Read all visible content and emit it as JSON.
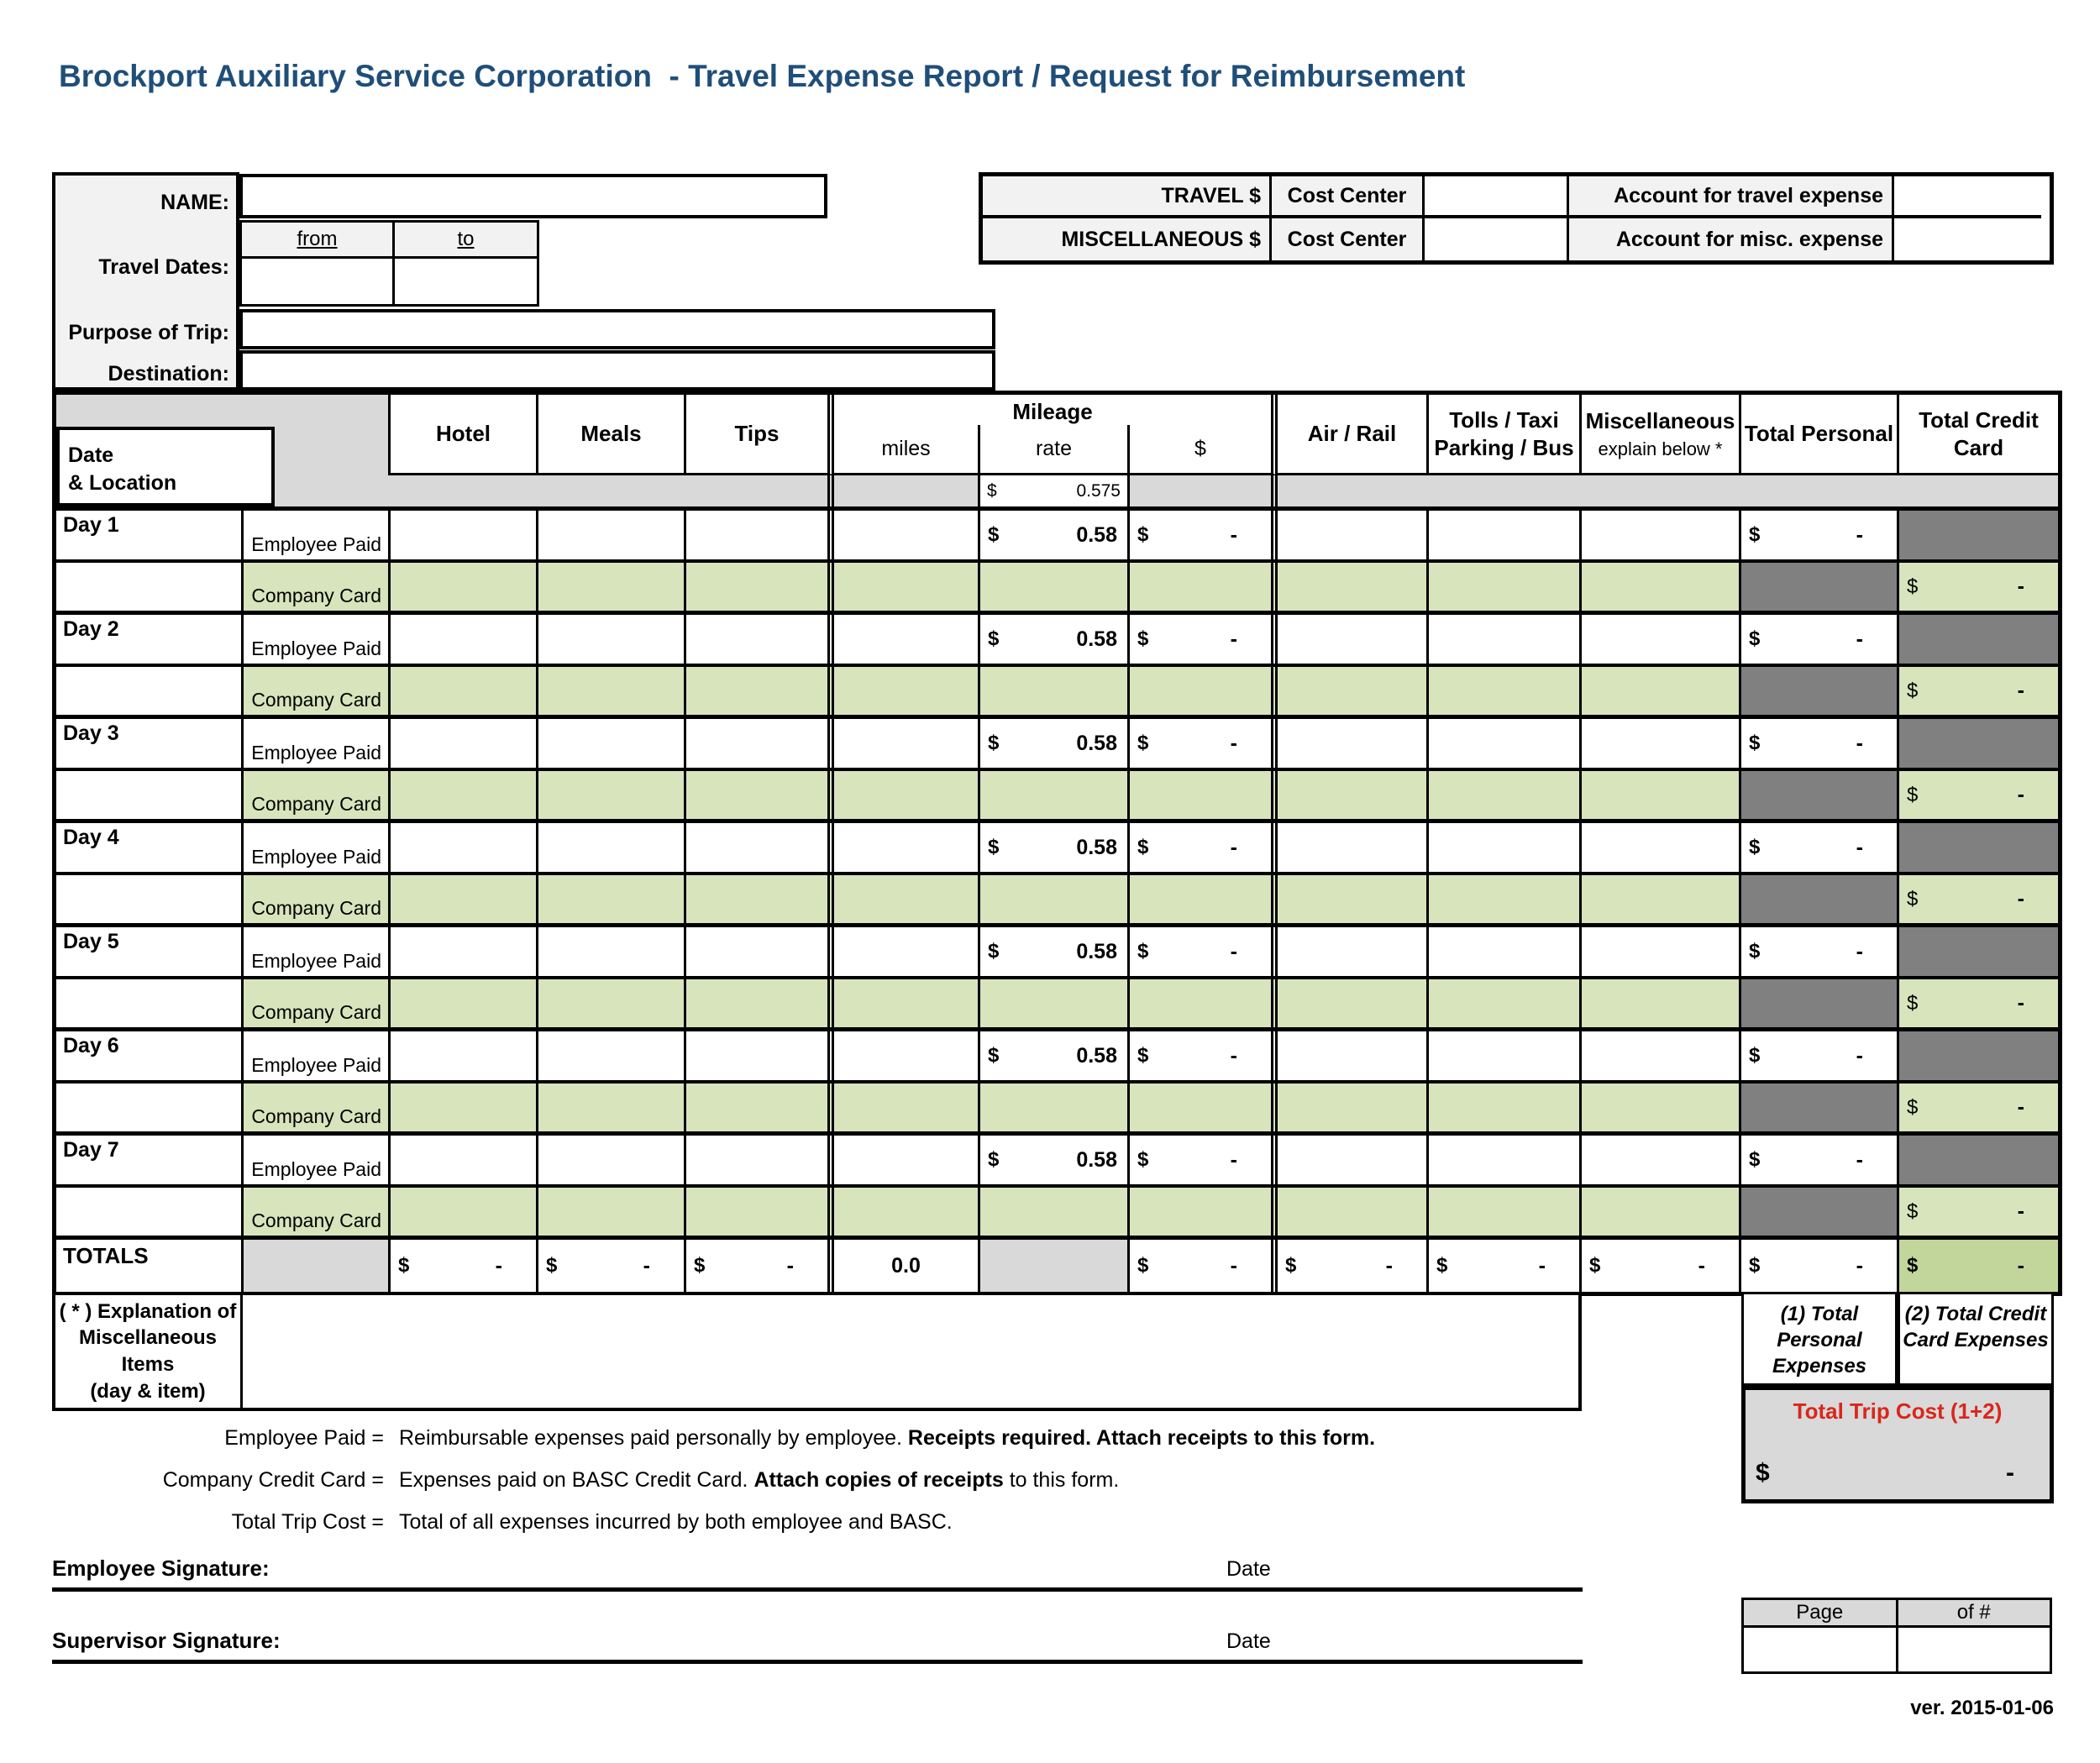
{
  "title": "Brockport Auxiliary Service Corporation  - Travel Expense Report / Request for Reimbursement",
  "currency": "$",
  "colors": {
    "title_blue": "#1F4E79",
    "row_green": "#D8E4BC",
    "totals_green": "#C2D69B",
    "dark_gray": "#808080",
    "strip_gray": "#D9D9D9",
    "label_gray": "#F2F2F2",
    "trip_red": "#D9261C"
  },
  "info": {
    "name_label": "NAME:",
    "name_value": "",
    "travel_dates_label": "Travel Dates:",
    "from_label": "from",
    "to_label": "to",
    "from_value": "",
    "to_value": "",
    "purpose_label": "Purpose of Trip:",
    "purpose_value": "",
    "destination_label": "Destination:",
    "destination_value": ""
  },
  "acct": {
    "travel_label": "TRAVEL $",
    "misc_label": "MISCELLANEOUS $",
    "cost_center_label": "Cost Center",
    "travel_cost_center_value": "",
    "misc_cost_center_value": "",
    "travel_account_label": "Account for travel expense",
    "misc_account_label": "Account for misc. expense",
    "travel_account_value": "",
    "misc_account_value": ""
  },
  "table": {
    "headers": {
      "date1": "Date",
      "date2": "& Location",
      "hotel": "Hotel",
      "meals": "Meals",
      "tips": "Tips",
      "mileage": "Mileage",
      "miles": "miles",
      "rate": "rate",
      "dollar": "$",
      "air_rail": "Air / Rail",
      "tolls1": "Tolls / Taxi",
      "tolls2": "Parking / Bus",
      "misc1": "Miscellaneous",
      "misc2": "explain below *",
      "total_personal": "Total Personal",
      "total_credit1": "Total Credit",
      "total_credit2": "Card"
    },
    "standard_rate": "0.575",
    "employee_sublabel": "Employee Paid",
    "company_sublabel": "Company Card",
    "employee_rate": "0.58",
    "dash": "-",
    "days": [
      {
        "label": "Day 1"
      },
      {
        "label": "Day 2"
      },
      {
        "label": "Day 3"
      },
      {
        "label": "Day 4"
      },
      {
        "label": "Day 5"
      },
      {
        "label": "Day 6"
      },
      {
        "label": "Day 7"
      }
    ],
    "totals": {
      "label": "TOTALS",
      "hotel": "-",
      "meals": "-",
      "tips": "-",
      "miles": "0.0",
      "mileage_amount": "-",
      "air_rail": "-",
      "tolls": "-",
      "misc": "-",
      "total_personal": "-",
      "total_credit": "-"
    }
  },
  "summary": {
    "explanation_lines": [
      "( * ) Explanation of",
      "Miscellaneous",
      "Items",
      "(day & item)"
    ],
    "note1_lines": [
      "(1) Total",
      "Personal",
      "Expenses"
    ],
    "note2_lines": [
      "(2) Total Credit",
      "Card Expenses"
    ],
    "total_trip_label": "Total Trip Cost (1+2)",
    "total_trip_value": "-"
  },
  "legend": [
    {
      "label": "Employee Paid =",
      "parts": [
        {
          "text": "Reimbursable expenses paid personally by employee. ",
          "bold": false
        },
        {
          "text": "Receipts required. Attach receipts to this form.",
          "bold": true
        }
      ]
    },
    {
      "label": "Company Credit Card =",
      "parts": [
        {
          "text": "Expenses paid on BASC Credit Card. ",
          "bold": false
        },
        {
          "text": "Attach copies of receipts",
          "bold": true
        },
        {
          "text": " to this form.",
          "bold": false
        }
      ]
    },
    {
      "label": "Total Trip Cost =",
      "parts": [
        {
          "text": "Total of all expenses incurred by both employee and BASC.",
          "bold": false
        }
      ]
    }
  ],
  "signatures": {
    "employee_label": "Employee Signature:",
    "supervisor_label": "Supervisor Signature:",
    "date_label": "Date"
  },
  "footer": {
    "page_label": "Page",
    "of_label": "of #",
    "page_value": "",
    "of_value": "",
    "version": "ver. 2015-01-06"
  }
}
